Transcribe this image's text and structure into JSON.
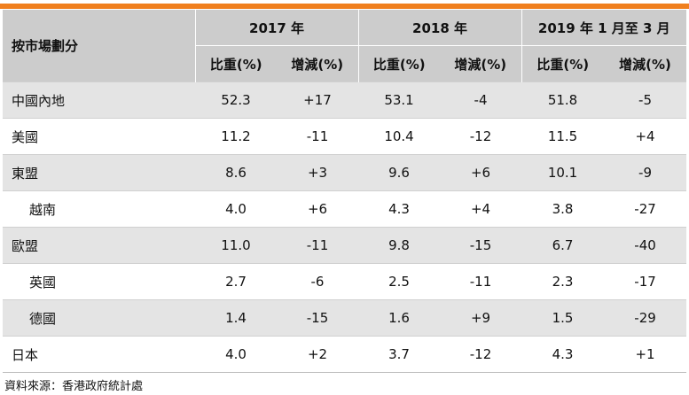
{
  "header": {
    "row_header": "按市場劃分",
    "groups": [
      "2017 年",
      "2018 年",
      "2019 年 1 月至 3 月"
    ],
    "subcols": [
      "比重(%)",
      "增減(%)"
    ]
  },
  "rows": [
    {
      "label": "中國內地",
      "indent": false,
      "shaded": true,
      "values": [
        "52.3",
        "+17",
        "53.1",
        "-4",
        "51.8",
        "-5"
      ]
    },
    {
      "label": "美國",
      "indent": false,
      "shaded": false,
      "values": [
        "11.2",
        "-11",
        "10.4",
        "-12",
        "11.5",
        "+4"
      ]
    },
    {
      "label": "東盟",
      "indent": false,
      "shaded": true,
      "values": [
        "8.6",
        "+3",
        "9.6",
        "+6",
        "10.1",
        "-9"
      ]
    },
    {
      "label": "越南",
      "indent": true,
      "shaded": false,
      "values": [
        "4.0",
        "+6",
        "4.3",
        "+4",
        "3.8",
        "-27"
      ]
    },
    {
      "label": "歐盟",
      "indent": false,
      "shaded": true,
      "values": [
        "11.0",
        "-11",
        "9.8",
        "-15",
        "6.7",
        "-40"
      ]
    },
    {
      "label": "英國",
      "indent": true,
      "shaded": false,
      "values": [
        "2.7",
        "-6",
        "2.5",
        "-11",
        "2.3",
        "-17"
      ]
    },
    {
      "label": "德國",
      "indent": true,
      "shaded": true,
      "values": [
        "1.4",
        "-15",
        "1.6",
        "+9",
        "1.5",
        "-29"
      ]
    },
    {
      "label": "日本",
      "indent": false,
      "shaded": false,
      "values": [
        "4.0",
        "+2",
        "3.7",
        "-12",
        "4.3",
        "+1"
      ]
    }
  ],
  "source": "資料來源：香港政府統計處"
}
